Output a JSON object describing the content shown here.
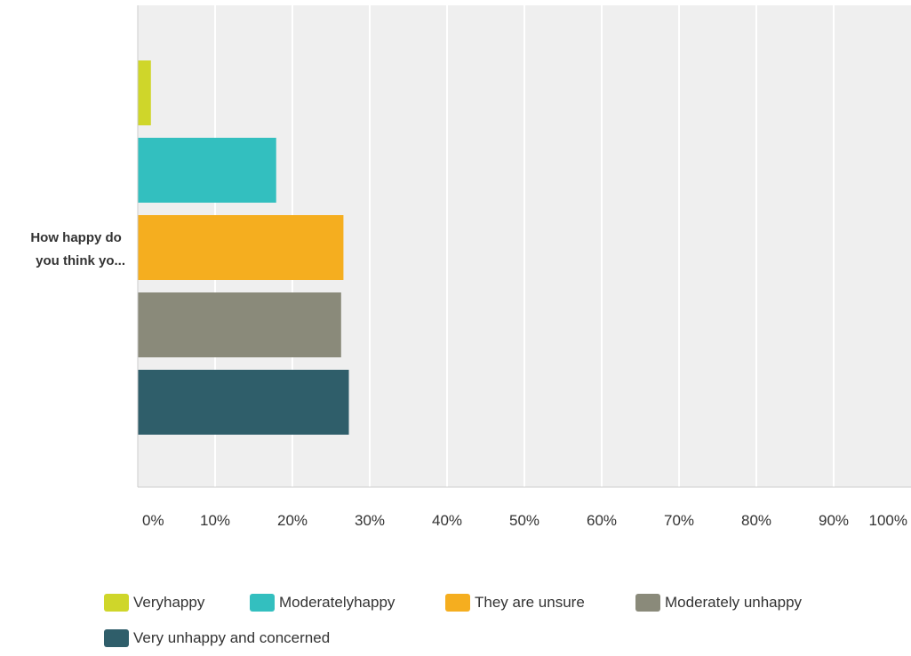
{
  "chart_data": {
    "type": "bar",
    "orientation": "horizontal",
    "category_label": "How happy do you think yo...",
    "category_label_lines": [
      "How happy do",
      "you think yo..."
    ],
    "x_ticks": [
      "0%",
      "10%",
      "20%",
      "30%",
      "40%",
      "50%",
      "60%",
      "70%",
      "80%",
      "90%",
      "100%"
    ],
    "xlim": [
      0,
      100
    ],
    "grid": true,
    "legend_position": "bottom",
    "series": [
      {
        "name": "Veryhappy",
        "value": 1.7,
        "color": "#cfd62a"
      },
      {
        "name": "Moderatelyhappy",
        "value": 17.9,
        "color": "#33bfbf"
      },
      {
        "name": "They are unsure",
        "value": 26.6,
        "color": "#f5ae1f"
      },
      {
        "name": "Moderately unhappy",
        "value": 26.3,
        "color": "#8a8a7a"
      },
      {
        "name": "Very unhappy and concerned",
        "value": 27.3,
        "color": "#2f5e6a"
      }
    ]
  }
}
